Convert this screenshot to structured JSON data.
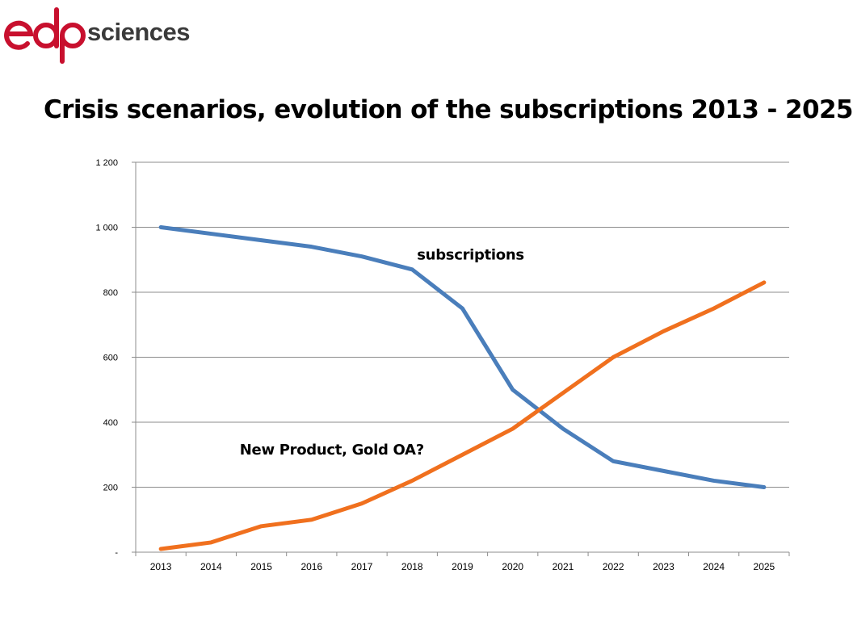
{
  "logo": {
    "wordmark": "edp",
    "text": "sciences",
    "brand_color": "#C8102E",
    "text_color": "#3a3a3a"
  },
  "slide": {
    "title": "Crisis scenarios, evolution of the subscriptions 2013 - 2025"
  },
  "chart_data": {
    "type": "line",
    "title": "",
    "xlabel": "",
    "ylabel": "",
    "categories": [
      "2013",
      "2014",
      "2015",
      "2016",
      "2017",
      "2018",
      "2019",
      "2020",
      "2021",
      "2022",
      "2023",
      "2024",
      "2025"
    ],
    "ylim": [
      0,
      1200
    ],
    "yticks": [
      0,
      200,
      400,
      600,
      800,
      1000,
      1200
    ],
    "ytick_labels": [
      "-",
      "200",
      "400",
      "600",
      "800",
      "1 000",
      "1 200"
    ],
    "grid": true,
    "legend": "none",
    "series": [
      {
        "name": "subscriptions",
        "color": "#4A7EBB",
        "values": [
          1000,
          980,
          960,
          940,
          910,
          870,
          750,
          500,
          380,
          280,
          250,
          220,
          200
        ]
      },
      {
        "name": "New Product, Gold OA?",
        "color": "#F0701E",
        "values": [
          10,
          30,
          80,
          100,
          150,
          220,
          300,
          380,
          490,
          600,
          680,
          750,
          830
        ]
      }
    ],
    "annotations": [
      {
        "text": "subscriptions",
        "x": "2018",
        "y": 915
      },
      {
        "text": "New Product, Gold OA?",
        "x": "2016",
        "y": 315
      }
    ]
  }
}
